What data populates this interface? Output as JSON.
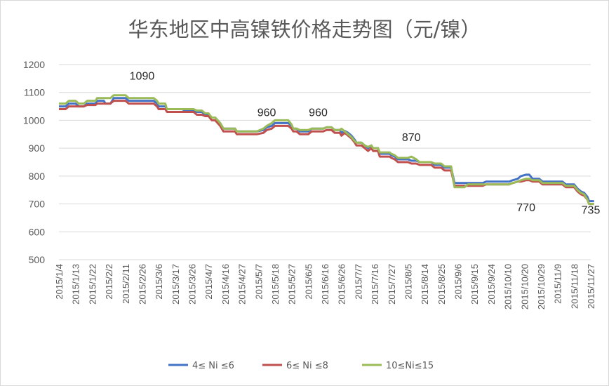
{
  "chart_data": {
    "type": "line",
    "title": "华东地区中高镍铁价格走势图（元/镍）",
    "xlabel": "",
    "ylabel": "",
    "ylim": [
      500,
      1200
    ],
    "yticks": [
      500,
      600,
      700,
      800,
      900,
      1000,
      1100,
      1200
    ],
    "grid": true,
    "legend_position": "bottom",
    "x_tick_labels": [
      "2015/1/4",
      "2015/1/13",
      "2015/1/22",
      "2015/2/2",
      "2015/2/11",
      "2015/2/26",
      "2015/3/6",
      "2015/3/17",
      "2015/3/26",
      "2015/4/7",
      "2015/4/16",
      "2015/4/27",
      "2015/5/7",
      "2015/5/18",
      "2015/5/27",
      "2015/6/5",
      "2015/6/16",
      "2015/6/26",
      "2015/7/7",
      "2015/7/16",
      "2015/7/27",
      "2015/8/5",
      "2015/8/14",
      "2015/8/25",
      "2015/9/6",
      "2015/9/15",
      "2015/9/24",
      "2015/10/10",
      "2015/10/20",
      "2015/10/29",
      "2015/11/9",
      "2015/11/18",
      "2015/11/27"
    ],
    "annotations": [
      {
        "text": "1090",
        "x_index": 5,
        "value": 1090
      },
      {
        "text": "960",
        "x_index": 12.5,
        "value": 960
      },
      {
        "text": "960",
        "x_index": 15.6,
        "value": 960
      },
      {
        "text": "870",
        "x_index": 21.2,
        "value": 870
      },
      {
        "text": "770",
        "x_index": 28.1,
        "value": 770
      },
      {
        "text": "735",
        "x_index": 32.0,
        "value": 735
      }
    ],
    "series": [
      {
        "name": "4≤ Ni ≤6",
        "color": "#4472c4",
        "points": [
          [
            0,
            1050
          ],
          [
            0.4,
            1050
          ],
          [
            0.6,
            1060
          ],
          [
            1.0,
            1060
          ],
          [
            1.2,
            1050
          ],
          [
            1.5,
            1050
          ],
          [
            1.7,
            1060
          ],
          [
            2.2,
            1060
          ],
          [
            2.3,
            1070
          ],
          [
            2.7,
            1070
          ],
          [
            2.8,
            1060
          ],
          [
            3.1,
            1060
          ],
          [
            3.3,
            1080
          ],
          [
            4.0,
            1080
          ],
          [
            4.2,
            1070
          ],
          [
            5.7,
            1070
          ],
          [
            5.9,
            1060
          ],
          [
            6.0,
            1050
          ],
          [
            6.4,
            1050
          ],
          [
            6.5,
            1040
          ],
          [
            7.4,
            1040
          ],
          [
            7.6,
            1035
          ],
          [
            8.1,
            1035
          ],
          [
            8.3,
            1030
          ],
          [
            8.6,
            1030
          ],
          [
            8.8,
            1020
          ],
          [
            9.0,
            1020
          ],
          [
            9.2,
            1010
          ],
          [
            9.4,
            1010
          ],
          [
            9.7,
            990
          ],
          [
            9.9,
            970
          ],
          [
            10.6,
            970
          ],
          [
            10.7,
            960
          ],
          [
            11.9,
            960
          ],
          [
            12.3,
            965
          ],
          [
            12.5,
            975
          ],
          [
            12.8,
            980
          ],
          [
            13.0,
            990
          ],
          [
            13.3,
            990
          ],
          [
            13.8,
            990
          ],
          [
            14.0,
            980
          ],
          [
            14.1,
            970
          ],
          [
            14.3,
            970
          ],
          [
            14.5,
            960
          ],
          [
            15.0,
            960
          ],
          [
            15.2,
            970
          ],
          [
            15.9,
            970
          ],
          [
            16.1,
            975
          ],
          [
            16.4,
            975
          ],
          [
            16.6,
            965
          ],
          [
            16.9,
            965
          ],
          [
            17.0,
            955
          ],
          [
            17.2,
            962
          ],
          [
            17.4,
            955
          ],
          [
            17.6,
            945
          ],
          [
            17.8,
            930
          ],
          [
            17.9,
            920
          ],
          [
            18.2,
            920
          ],
          [
            18.4,
            910
          ],
          [
            18.6,
            900
          ],
          [
            18.8,
            910
          ],
          [
            18.9,
            900
          ],
          [
            19.2,
            900
          ],
          [
            19.3,
            880
          ],
          [
            19.9,
            880
          ],
          [
            20.0,
            875
          ],
          [
            20.2,
            870
          ],
          [
            20.4,
            860
          ],
          [
            21.0,
            860
          ],
          [
            21.2,
            855
          ],
          [
            21.5,
            855
          ],
          [
            21.7,
            850
          ],
          [
            22.4,
            850
          ],
          [
            22.6,
            840
          ],
          [
            23.0,
            840
          ],
          [
            23.2,
            830
          ],
          [
            23.6,
            830
          ],
          [
            23.8,
            775
          ],
          [
            25.5,
            775
          ],
          [
            25.7,
            780
          ],
          [
            27.1,
            780
          ],
          [
            27.3,
            785
          ],
          [
            27.6,
            790
          ],
          [
            27.8,
            800
          ],
          [
            28.1,
            805
          ],
          [
            28.3,
            805
          ],
          [
            28.5,
            790
          ],
          [
            28.9,
            790
          ],
          [
            29.1,
            780
          ],
          [
            30.3,
            780
          ],
          [
            30.5,
            770
          ],
          [
            31.0,
            770
          ],
          [
            31.2,
            755
          ],
          [
            31.4,
            745
          ],
          [
            31.6,
            740
          ],
          [
            31.8,
            725
          ],
          [
            31.9,
            710
          ],
          [
            32.2,
            710
          ]
        ]
      },
      {
        "name": "6≤ Ni ≤8",
        "color": "#c0504d",
        "points": [
          [
            0,
            1040
          ],
          [
            0.4,
            1040
          ],
          [
            0.6,
            1050
          ],
          [
            1.0,
            1050
          ],
          [
            1.2,
            1050
          ],
          [
            1.5,
            1050
          ],
          [
            1.7,
            1055
          ],
          [
            2.2,
            1055
          ],
          [
            2.3,
            1060
          ],
          [
            2.7,
            1060
          ],
          [
            2.8,
            1060
          ],
          [
            3.1,
            1060
          ],
          [
            3.3,
            1070
          ],
          [
            4.0,
            1070
          ],
          [
            4.2,
            1060
          ],
          [
            5.7,
            1060
          ],
          [
            5.9,
            1050
          ],
          [
            6.0,
            1040
          ],
          [
            6.4,
            1040
          ],
          [
            6.5,
            1030
          ],
          [
            7.4,
            1030
          ],
          [
            7.6,
            1030
          ],
          [
            8.1,
            1030
          ],
          [
            8.3,
            1020
          ],
          [
            8.6,
            1020
          ],
          [
            8.8,
            1015
          ],
          [
            9.0,
            1015
          ],
          [
            9.2,
            1000
          ],
          [
            9.4,
            1000
          ],
          [
            9.7,
            980
          ],
          [
            9.9,
            960
          ],
          [
            10.6,
            960
          ],
          [
            10.7,
            950
          ],
          [
            11.9,
            950
          ],
          [
            12.3,
            955
          ],
          [
            12.5,
            965
          ],
          [
            12.8,
            970
          ],
          [
            13.0,
            980
          ],
          [
            13.3,
            980
          ],
          [
            13.8,
            980
          ],
          [
            14.0,
            970
          ],
          [
            14.1,
            960
          ],
          [
            14.3,
            960
          ],
          [
            14.5,
            950
          ],
          [
            15.0,
            950
          ],
          [
            15.2,
            960
          ],
          [
            15.9,
            960
          ],
          [
            16.1,
            965
          ],
          [
            16.4,
            965
          ],
          [
            16.6,
            955
          ],
          [
            16.9,
            955
          ],
          [
            17.0,
            945
          ],
          [
            17.2,
            955
          ],
          [
            17.4,
            945
          ],
          [
            17.6,
            935
          ],
          [
            17.8,
            920
          ],
          [
            17.9,
            910
          ],
          [
            18.2,
            910
          ],
          [
            18.4,
            900
          ],
          [
            18.6,
            890
          ],
          [
            18.8,
            900
          ],
          [
            18.9,
            890
          ],
          [
            19.2,
            890
          ],
          [
            19.3,
            870
          ],
          [
            19.9,
            870
          ],
          [
            20.0,
            865
          ],
          [
            20.2,
            860
          ],
          [
            20.4,
            850
          ],
          [
            21.0,
            850
          ],
          [
            21.2,
            845
          ],
          [
            21.5,
            845
          ],
          [
            21.7,
            840
          ],
          [
            22.4,
            840
          ],
          [
            22.6,
            830
          ],
          [
            23.0,
            830
          ],
          [
            23.2,
            820
          ],
          [
            23.6,
            820
          ],
          [
            23.8,
            765
          ],
          [
            25.5,
            765
          ],
          [
            25.7,
            770
          ],
          [
            27.1,
            770
          ],
          [
            27.3,
            775
          ],
          [
            27.6,
            780
          ],
          [
            27.8,
            780
          ],
          [
            28.1,
            785
          ],
          [
            28.3,
            785
          ],
          [
            28.5,
            780
          ],
          [
            28.9,
            780
          ],
          [
            29.1,
            770
          ],
          [
            30.3,
            770
          ],
          [
            30.5,
            760
          ],
          [
            31.0,
            760
          ],
          [
            31.2,
            745
          ],
          [
            31.4,
            735
          ],
          [
            31.6,
            730
          ],
          [
            31.8,
            715
          ],
          [
            31.9,
            700
          ],
          [
            32.2,
            700
          ]
        ]
      },
      {
        "name": "10≤Ni≤15",
        "color": "#9bbb59",
        "points": [
          [
            0,
            1060
          ],
          [
            0.4,
            1060
          ],
          [
            0.6,
            1070
          ],
          [
            1.0,
            1070
          ],
          [
            1.2,
            1060
          ],
          [
            1.5,
            1060
          ],
          [
            1.7,
            1070
          ],
          [
            2.2,
            1070
          ],
          [
            2.3,
            1080
          ],
          [
            2.7,
            1080
          ],
          [
            2.8,
            1080
          ],
          [
            3.1,
            1080
          ],
          [
            3.3,
            1090
          ],
          [
            4.0,
            1090
          ],
          [
            4.2,
            1080
          ],
          [
            5.7,
            1080
          ],
          [
            5.9,
            1070
          ],
          [
            6.0,
            1060
          ],
          [
            6.4,
            1060
          ],
          [
            6.5,
            1040
          ],
          [
            7.4,
            1040
          ],
          [
            7.6,
            1040
          ],
          [
            8.1,
            1040
          ],
          [
            8.3,
            1035
          ],
          [
            8.6,
            1035
          ],
          [
            8.8,
            1025
          ],
          [
            9.0,
            1025
          ],
          [
            9.2,
            1010
          ],
          [
            9.4,
            1010
          ],
          [
            9.7,
            990
          ],
          [
            9.9,
            970
          ],
          [
            10.6,
            970
          ],
          [
            10.7,
            960
          ],
          [
            11.9,
            960
          ],
          [
            12.3,
            970
          ],
          [
            12.5,
            980
          ],
          [
            12.8,
            990
          ],
          [
            13.0,
            1000
          ],
          [
            13.3,
            1000
          ],
          [
            13.8,
            1000
          ],
          [
            14.0,
            985
          ],
          [
            14.1,
            970
          ],
          [
            14.3,
            970
          ],
          [
            14.5,
            965
          ],
          [
            15.0,
            965
          ],
          [
            15.2,
            970
          ],
          [
            15.9,
            970
          ],
          [
            16.1,
            975
          ],
          [
            16.4,
            975
          ],
          [
            16.6,
            965
          ],
          [
            16.9,
            965
          ],
          [
            17.0,
            970
          ],
          [
            17.2,
            960
          ],
          [
            17.4,
            950
          ],
          [
            17.6,
            940
          ],
          [
            17.8,
            925
          ],
          [
            17.9,
            920
          ],
          [
            18.2,
            920
          ],
          [
            18.4,
            910
          ],
          [
            18.6,
            905
          ],
          [
            18.8,
            910
          ],
          [
            18.9,
            900
          ],
          [
            19.2,
            900
          ],
          [
            19.3,
            885
          ],
          [
            19.9,
            885
          ],
          [
            20.0,
            880
          ],
          [
            20.2,
            875
          ],
          [
            20.4,
            865
          ],
          [
            21.0,
            865
          ],
          [
            21.2,
            870
          ],
          [
            21.5,
            860
          ],
          [
            21.7,
            850
          ],
          [
            22.4,
            850
          ],
          [
            22.6,
            845
          ],
          [
            23.0,
            845
          ],
          [
            23.2,
            835
          ],
          [
            23.6,
            835
          ],
          [
            23.8,
            760
          ],
          [
            24.4,
            760
          ],
          [
            24.6,
            770
          ],
          [
            27.1,
            770
          ],
          [
            27.3,
            775
          ],
          [
            27.6,
            780
          ],
          [
            27.8,
            785
          ],
          [
            28.1,
            790
          ],
          [
            28.3,
            790
          ],
          [
            28.5,
            785
          ],
          [
            28.9,
            785
          ],
          [
            29.1,
            775
          ],
          [
            30.3,
            775
          ],
          [
            30.5,
            765
          ],
          [
            31.0,
            765
          ],
          [
            31.2,
            750
          ],
          [
            31.4,
            740
          ],
          [
            31.6,
            735
          ],
          [
            31.8,
            715
          ],
          [
            31.9,
            700
          ],
          [
            32.2,
            700
          ]
        ]
      }
    ]
  }
}
